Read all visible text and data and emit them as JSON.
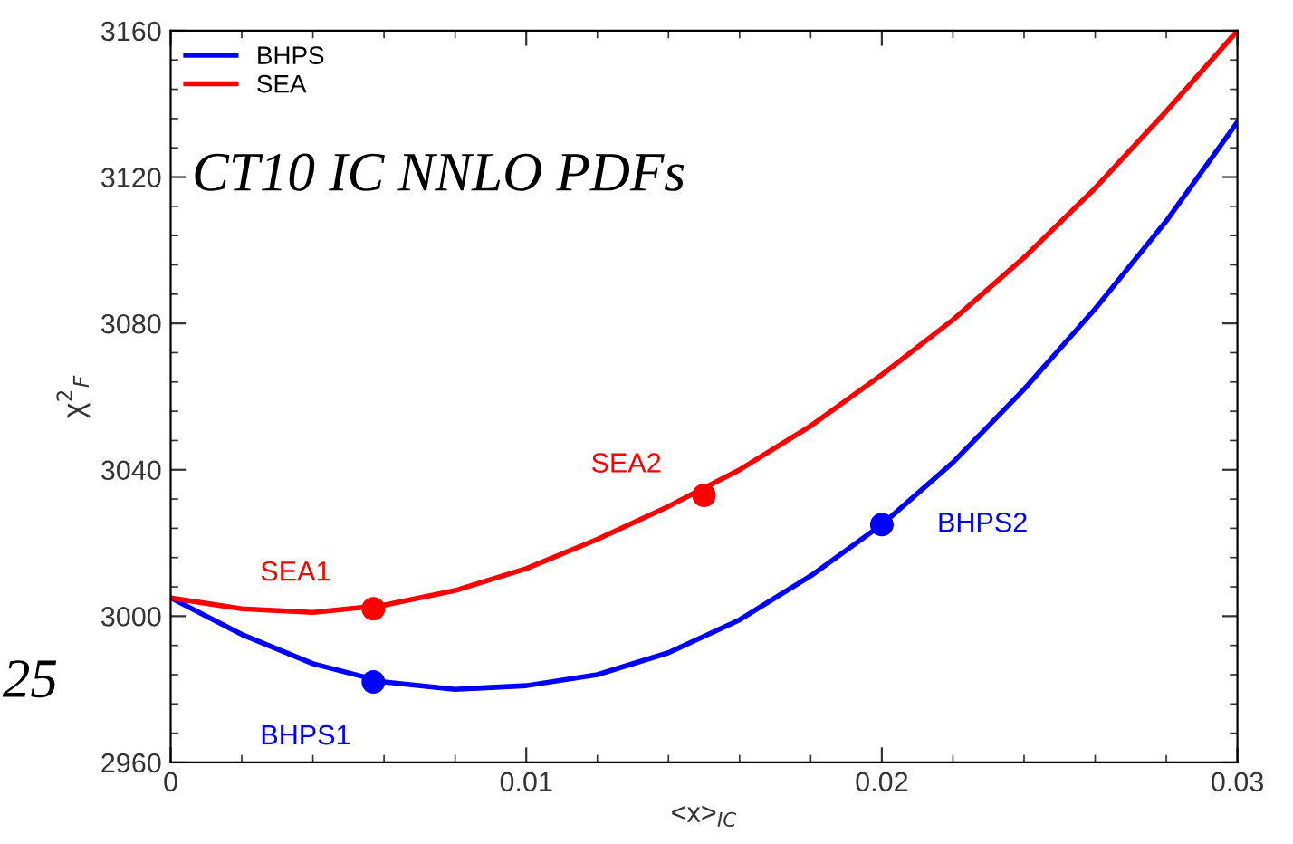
{
  "chart_data": {
    "type": "line",
    "xlabel": "<x>$_{IC}$",
    "ylabel": "χ$^{2}$$_{F}$",
    "x": [
      0,
      0.002,
      0.004,
      0.006,
      0.008,
      0.01,
      0.012,
      0.014,
      0.016,
      0.018,
      0.02,
      0.022,
      0.024,
      0.026,
      0.028,
      0.03
    ],
    "series": [
      {
        "name": "BHPS",
        "color": "#0000ff",
        "values": [
          3005,
          2995,
          2987,
          2982,
          2980,
          2981,
          2984,
          2990,
          2999,
          3011,
          3025,
          3042,
          3062,
          3084,
          3108,
          3135
        ]
      },
      {
        "name": "SEA",
        "color": "#ff0000",
        "values": [
          3005,
          3002,
          3001,
          3003,
          3007,
          3013,
          3021,
          3030,
          3040,
          3052,
          3066,
          3081,
          3098,
          3117,
          3138,
          3160
        ]
      },
      {
        "type": "scatter",
        "color": "#0000ff",
        "marker": "circle",
        "x": [
          0.0057,
          0.02
        ],
        "values": [
          2982,
          3025
        ]
      },
      {
        "type": "scatter",
        "color": "#ff0000",
        "marker": "circle",
        "x": [
          0.0057,
          0.015
        ],
        "values": [
          3002,
          3033
        ]
      }
    ],
    "annotations": [
      "CT10 IC NNLO PDFs",
      "25",
      {
        "text": "BHPS1",
        "x": 0.0057,
        "y": 2982
      },
      {
        "text": "BHPS2",
        "x": 0.02,
        "y": 3025
      },
      {
        "text": "SEA1",
        "x": 0.0057,
        "y": 3002
      },
      {
        "text": "SEA2",
        "x": 0.015,
        "y": 3033
      }
    ],
    "xlim": [
      0,
      0.03
    ],
    "xticks": [
      0,
      0.01,
      0.02,
      0.03
    ],
    "ylim": [
      2960,
      3160
    ],
    "yticks": [
      2960,
      3000,
      3040,
      3080,
      3120,
      3160
    ],
    "grid": false,
    "legend": "top left",
    "marker": "none",
    "line_style": "solid"
  }
}
